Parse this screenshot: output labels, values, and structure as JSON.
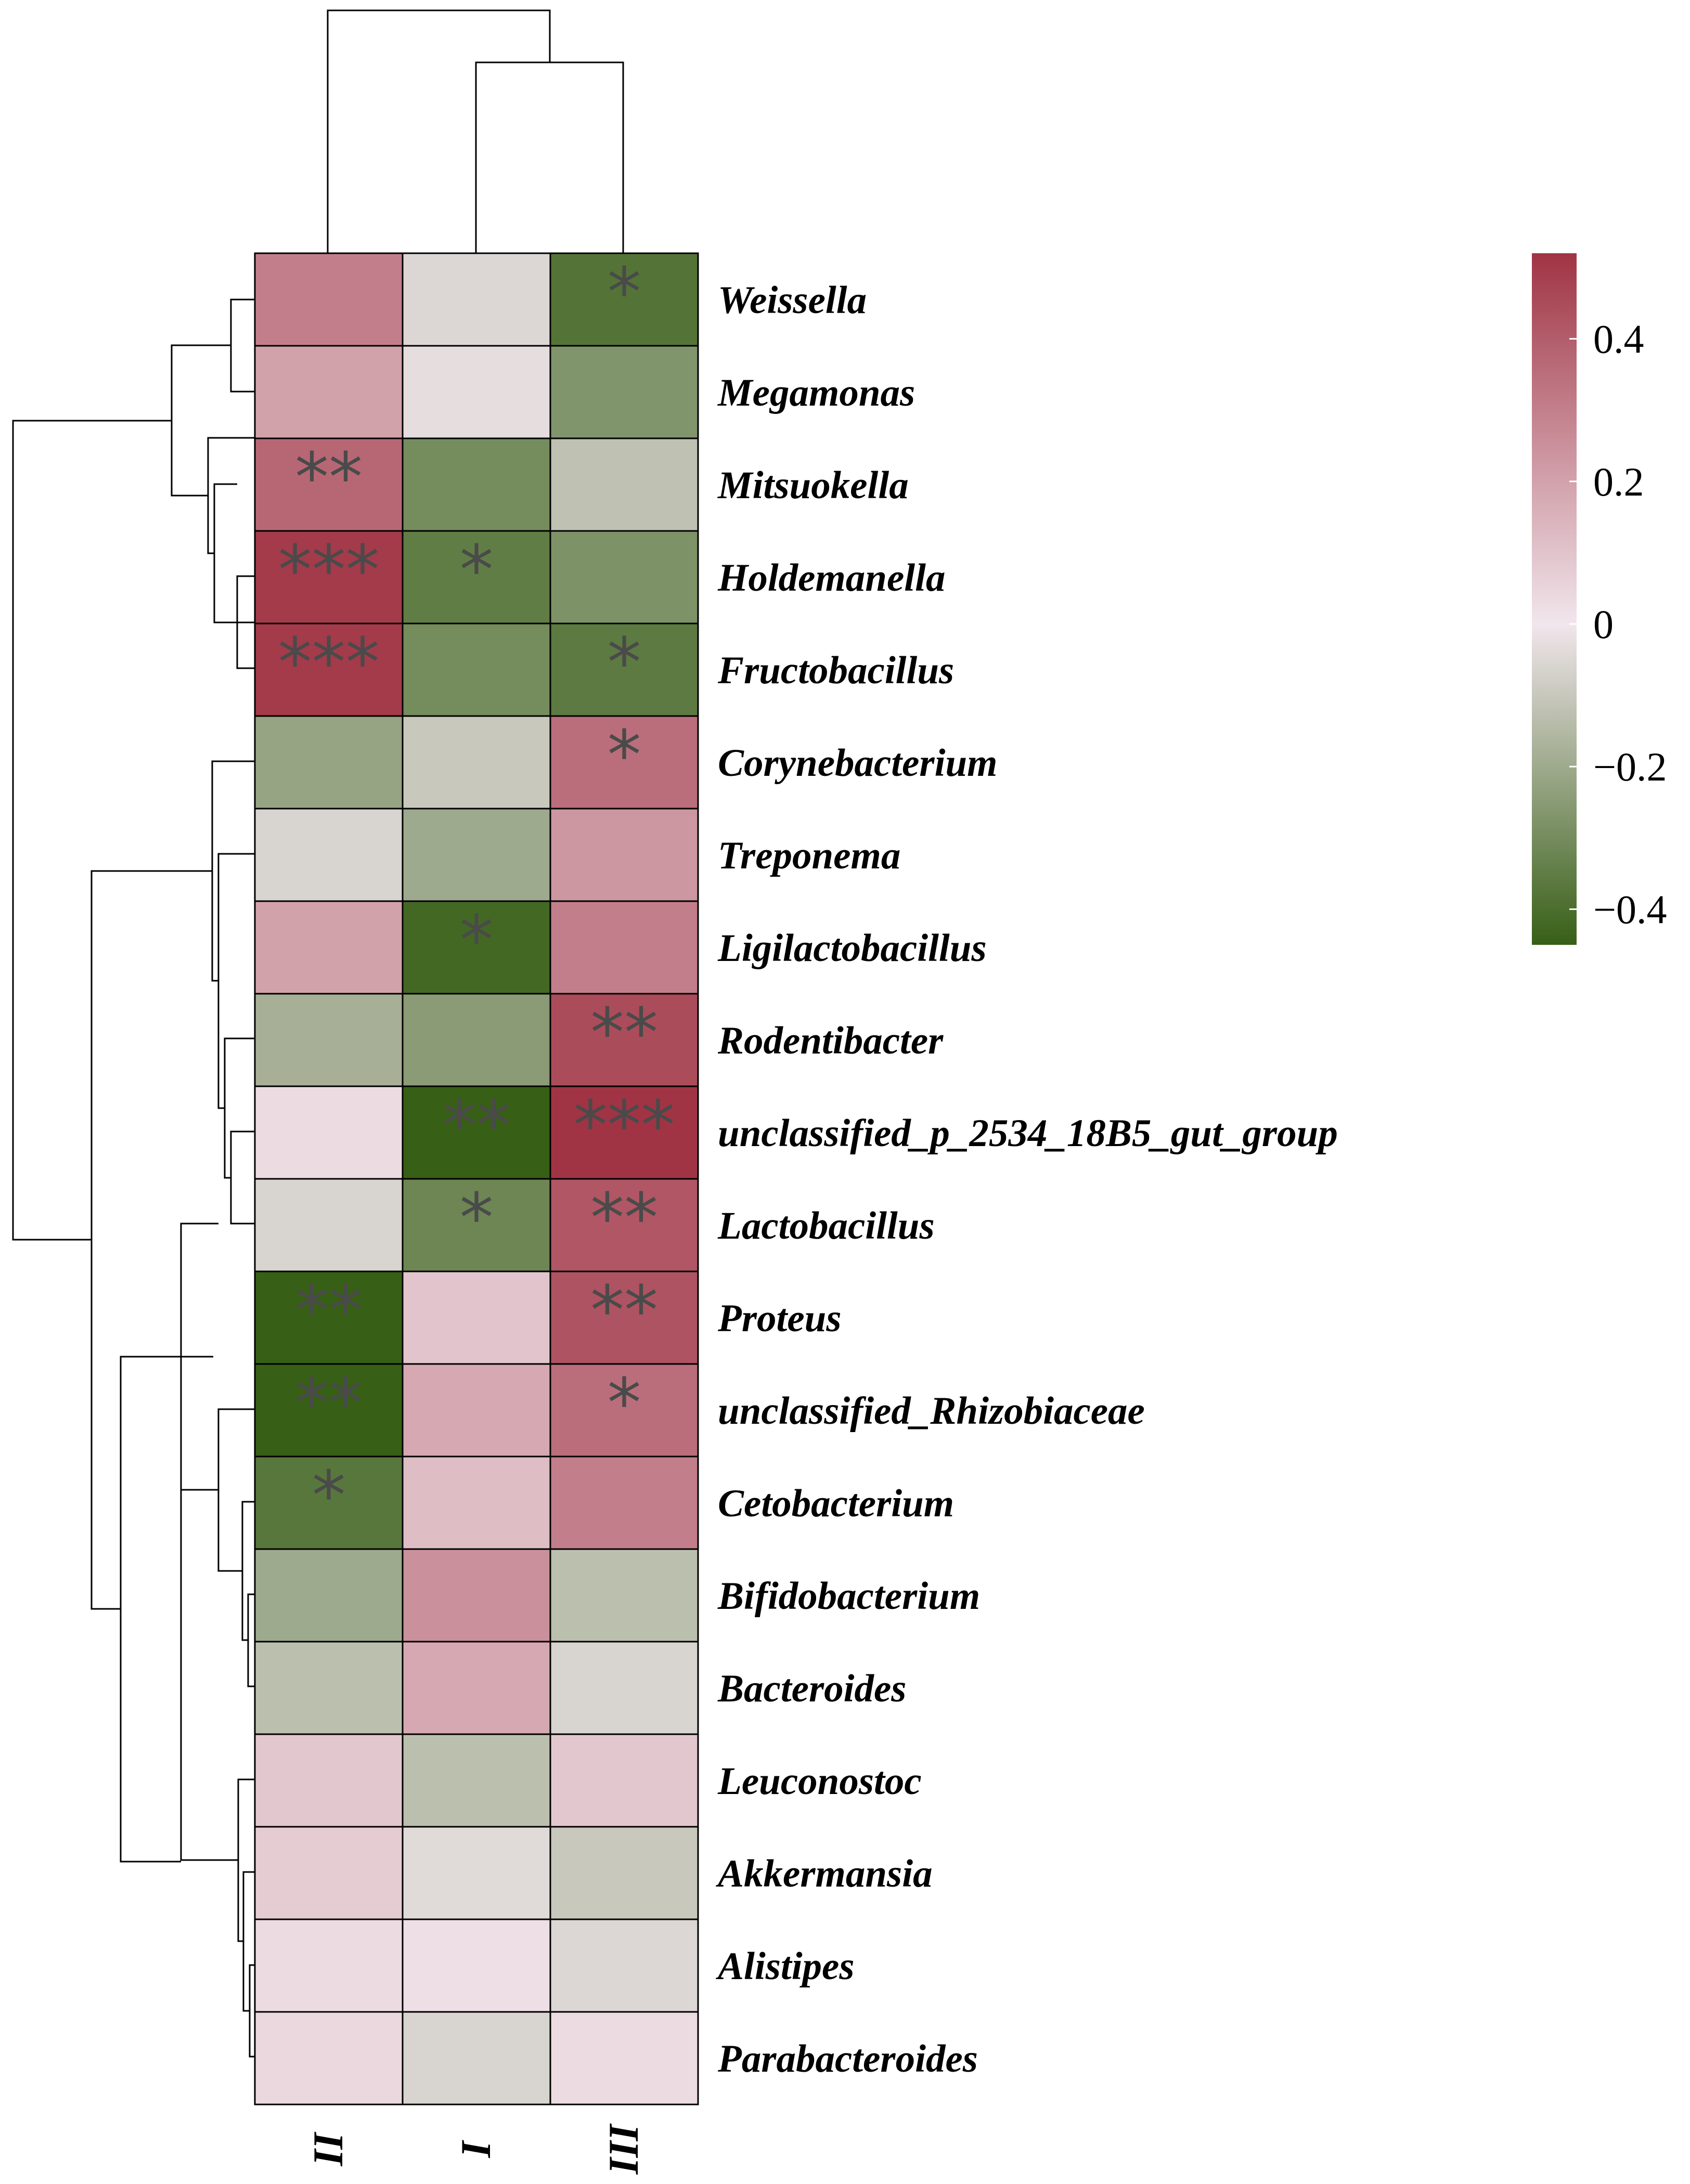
{
  "chart_data": {
    "type": "heatmap",
    "columns": [
      "II",
      "I",
      "III"
    ],
    "rows": [
      {
        "label": "Weissella",
        "values": [
          0.3,
          -0.05,
          -0.38
        ],
        "sig": [
          "",
          "",
          "*"
        ]
      },
      {
        "label": "Megamonas",
        "values": [
          0.2,
          -0.03,
          -0.27
        ],
        "sig": [
          "",
          "",
          ""
        ]
      },
      {
        "label": "Mitsuokella",
        "values": [
          0.37,
          -0.3,
          -0.12
        ],
        "sig": [
          "**",
          "",
          ""
        ]
      },
      {
        "label": "Holdemanella",
        "values": [
          0.5,
          -0.35,
          -0.28
        ],
        "sig": [
          "***",
          "*",
          ""
        ]
      },
      {
        "label": "Fructobacillus",
        "values": [
          0.5,
          -0.3,
          -0.36
        ],
        "sig": [
          "***",
          "",
          "*"
        ]
      },
      {
        "label": "Corynebacterium",
        "values": [
          -0.22,
          -0.1,
          0.35
        ],
        "sig": [
          "",
          "",
          "*"
        ]
      },
      {
        "label": "Treponema",
        "values": [
          -0.06,
          -0.2,
          0.23
        ],
        "sig": [
          "",
          "",
          ""
        ]
      },
      {
        "label": "Ligilactobacillus",
        "values": [
          0.2,
          -0.42,
          0.3
        ],
        "sig": [
          "",
          "*",
          ""
        ]
      },
      {
        "label": "Rodentibacter",
        "values": [
          -0.18,
          -0.25,
          0.45
        ],
        "sig": [
          "",
          "",
          "**"
        ]
      },
      {
        "label": "unclassified_p_2534_18B5_gut_group",
        "values": [
          0.03,
          -0.45,
          0.52
        ],
        "sig": [
          "",
          "**",
          "***"
        ]
      },
      {
        "label": "Lactobacillus",
        "values": [
          -0.06,
          -0.32,
          0.42
        ],
        "sig": [
          "",
          "*",
          "**"
        ]
      },
      {
        "label": "Proteus",
        "values": [
          -0.47,
          0.1,
          0.43
        ],
        "sig": [
          "**",
          "",
          "**"
        ]
      },
      {
        "label": "unclassified_Rhizobiaceae",
        "values": [
          -0.47,
          0.18,
          0.35
        ],
        "sig": [
          "**",
          "",
          "*"
        ]
      },
      {
        "label": "Cetobacterium",
        "values": [
          -0.37,
          0.12,
          0.3
        ],
        "sig": [
          "*",
          "",
          ""
        ]
      },
      {
        "label": "Bifidobacterium",
        "values": [
          -0.2,
          0.25,
          -0.13
        ],
        "sig": [
          "",
          "",
          ""
        ]
      },
      {
        "label": "Bacteroides",
        "values": [
          -0.13,
          0.18,
          -0.06
        ],
        "sig": [
          "",
          "",
          ""
        ]
      },
      {
        "label": "Leuconostoc",
        "values": [
          0.09,
          -0.13,
          0.09
        ],
        "sig": [
          "",
          "",
          ""
        ]
      },
      {
        "label": "Akkermansia",
        "values": [
          0.08,
          -0.04,
          -0.1
        ],
        "sig": [
          "",
          "",
          ""
        ]
      },
      {
        "label": "Alistipes",
        "values": [
          0.03,
          0.02,
          -0.05
        ],
        "sig": [
          "",
          "",
          ""
        ]
      },
      {
        "label": "Parabacteroides",
        "values": [
          0.04,
          -0.06,
          0.03
        ],
        "sig": [
          "",
          "",
          ""
        ]
      }
    ],
    "colorbar": {
      "min": -0.45,
      "max": 0.52,
      "ticks": [
        {
          "value": 0.4,
          "label": "0.4"
        },
        {
          "value": 0.2,
          "label": "0.2"
        },
        {
          "value": 0.0,
          "label": "0"
        },
        {
          "value": -0.2,
          "label": "−0.2"
        },
        {
          "value": -0.4,
          "label": "−0.4"
        }
      ],
      "colors": {
        "neg": "#375f16",
        "mid": "#f1e6ec",
        "pos": "#a03444"
      }
    },
    "title": "",
    "xlabel": "",
    "ylabel": ""
  }
}
